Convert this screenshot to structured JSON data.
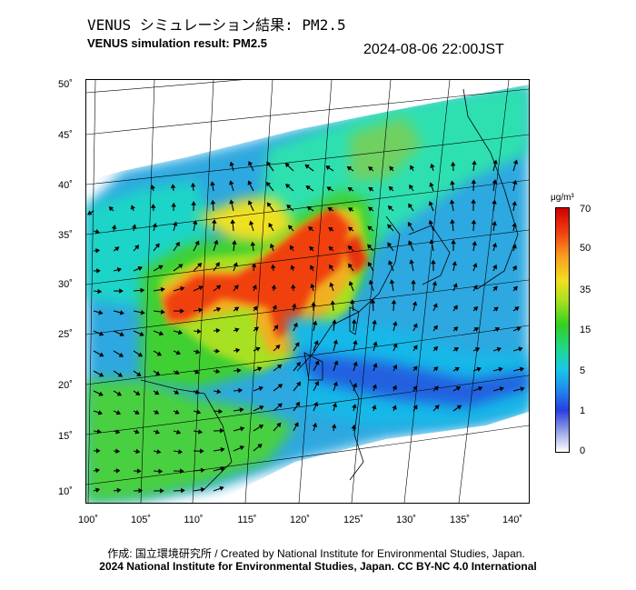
{
  "title_jp": "VENUS シミュレーション結果: PM2.5",
  "title_en": "VENUS simulation result: PM2.5",
  "timestamp": "2024-08-06 22:00JST",
  "lat_labels": [
    "50˚",
    "45˚",
    "40˚",
    "35˚",
    "30˚",
    "25˚",
    "20˚",
    "15˚",
    "10˚"
  ],
  "lon_labels": [
    "100˚",
    "105˚",
    "110˚",
    "115˚",
    "120˚",
    "125˚",
    "130˚",
    "135˚",
    "140˚"
  ],
  "colorbar": {
    "unit": "μg/m³",
    "ticks": [
      "70",
      "50",
      "35",
      "15",
      "5",
      "1",
      "0"
    ],
    "colors": [
      "#ffffff",
      "#2a3de0",
      "#19c8e8",
      "#30d020",
      "#f0e020",
      "#f04010",
      "#d00000"
    ]
  },
  "credit_line1": "作成: 国立環境研究所 / Created by National Institute for Environmental Studies, Japan.",
  "credit_line2": "2024 National Institute for Environmental Studies, Japan. CC BY-NC 4.0 International"
}
